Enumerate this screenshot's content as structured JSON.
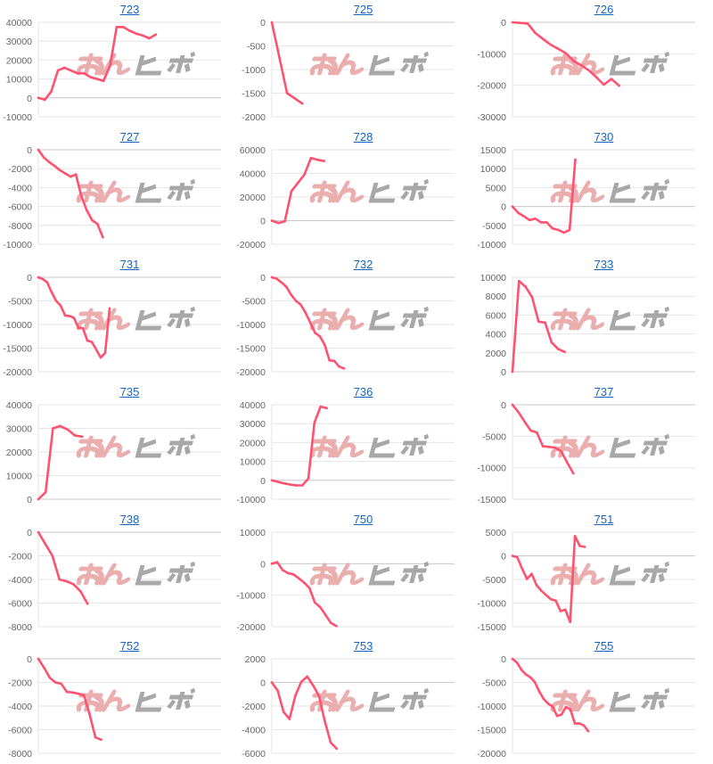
{
  "watermark": "みんレポ",
  "colors": {
    "line": "#ff5270",
    "grid": "#e6e6e6",
    "baseline": "#c8c8c8",
    "title_link": "#1565c0",
    "watermark_pink": "#e8a0a0",
    "watermark_gray": "#9a9a9a"
  },
  "chart_data": [
    {
      "type": "line",
      "title": "723",
      "y_ticks": [
        40000,
        30000,
        20000,
        10000,
        0,
        -10000
      ],
      "values": [
        0,
        -1000,
        3500,
        14500,
        16000,
        14500,
        13000,
        13000,
        11000,
        10000,
        9000,
        17000,
        37500,
        37500,
        35500,
        34000,
        33000,
        31500,
        33500
      ]
    },
    {
      "type": "line",
      "title": "725",
      "y_ticks": [
        0,
        -500,
        -1000,
        -1500,
        -2000
      ],
      "values": [
        0,
        -1500,
        -1720
      ]
    },
    {
      "type": "line",
      "title": "726",
      "y_ticks": [
        0,
        -10000,
        -20000,
        -30000
      ],
      "values": [
        0,
        -200,
        -400,
        -3400,
        -5300,
        -7100,
        -8400,
        -9800,
        -12200,
        -13600,
        -15200,
        -17400,
        -19800,
        -18000,
        -20100
      ]
    },
    {
      "type": "line",
      "title": "727",
      "y_ticks": [
        0,
        -2000,
        -4000,
        -6000,
        -8000,
        -10000
      ],
      "values": [
        0,
        -800,
        -1300,
        -1700,
        -2150,
        -2500,
        -2850,
        -2600,
        -4900,
        -6400,
        -7450,
        -7850,
        -9250
      ]
    },
    {
      "type": "line",
      "title": "728",
      "y_ticks": [
        60000,
        40000,
        20000,
        0,
        -20000
      ],
      "values": [
        0,
        -2000,
        -500,
        25000,
        32000,
        39000,
        53000,
        51500,
        50500
      ]
    },
    {
      "type": "line",
      "title": "730",
      "y_ticks": [
        15000,
        10000,
        5000,
        0,
        -5000,
        -10000
      ],
      "values": [
        0,
        -1700,
        -2600,
        -3600,
        -3200,
        -4200,
        -4200,
        -5800,
        -6200,
        -6900,
        -6200,
        12400
      ]
    },
    {
      "type": "line",
      "title": "731",
      "y_ticks": [
        0,
        -5000,
        -10000,
        -15000,
        -20000
      ],
      "values": [
        0,
        -400,
        -1100,
        -3200,
        -5000,
        -6000,
        -8100,
        -8200,
        -8600,
        -10700,
        -10800,
        -13400,
        -13700,
        -15300,
        -17000,
        -16000,
        -6600
      ]
    },
    {
      "type": "line",
      "title": "732",
      "y_ticks": [
        0,
        -5000,
        -10000,
        -15000,
        -20000
      ],
      "values": [
        0,
        -300,
        -1100,
        -2000,
        -3700,
        -5000,
        -5800,
        -7500,
        -9600,
        -11800,
        -12500,
        -14300,
        -17600,
        -17700,
        -18900,
        -19300
      ]
    },
    {
      "type": "line",
      "title": "733",
      "y_ticks": [
        10000,
        8000,
        6000,
        4000,
        2000,
        0
      ],
      "values": [
        0,
        9600,
        9000,
        7900,
        5300,
        5200,
        3100,
        2400,
        2100
      ]
    },
    {
      "type": "line",
      "title": "735",
      "y_ticks": [
        40000,
        30000,
        20000,
        10000,
        0
      ],
      "values": [
        0,
        3000,
        30000,
        31000,
        29500,
        27000,
        26500
      ]
    },
    {
      "type": "line",
      "title": "736",
      "y_ticks": [
        40000,
        30000,
        20000,
        10000,
        0,
        -10000
      ],
      "values": [
        0,
        -800,
        -1600,
        -2200,
        -2700,
        -2700,
        1000,
        30500,
        39000,
        38200
      ]
    },
    {
      "type": "line",
      "title": "737",
      "y_ticks": [
        0,
        -5000,
        -10000,
        -15000
      ],
      "values": [
        0,
        -1200,
        -2700,
        -4100,
        -4400,
        -6600,
        -6700,
        -6800,
        -7400,
        -9200,
        -10900
      ]
    },
    {
      "type": "line",
      "title": "738",
      "y_ticks": [
        0,
        -2000,
        -4000,
        -6000,
        -8000
      ],
      "values": [
        0,
        -1000,
        -2000,
        -4000,
        -4150,
        -4400,
        -5000,
        -6050
      ]
    },
    {
      "type": "line",
      "title": "750",
      "y_ticks": [
        10000,
        0,
        -10000,
        -20000
      ],
      "values": [
        0,
        500,
        -2000,
        -3000,
        -3400,
        -4600,
        -6000,
        -7700,
        -12300,
        -13800,
        -16300,
        -18800,
        -19800
      ]
    },
    {
      "type": "line",
      "title": "751",
      "y_ticks": [
        5000,
        0,
        -5000,
        -10000,
        -15000
      ],
      "values": [
        0,
        -300,
        -2700,
        -4900,
        -3800,
        -6200,
        -7400,
        -8300,
        -9200,
        -9500,
        -11700,
        -11400,
        -14000,
        4200,
        2100,
        1900
      ]
    },
    {
      "type": "line",
      "title": "752",
      "y_ticks": [
        0,
        -2000,
        -4000,
        -6000,
        -8000
      ],
      "values": [
        0,
        -750,
        -1600,
        -2000,
        -2100,
        -2800,
        -2850,
        -2950,
        -3100,
        -4750,
        -6650,
        -6850
      ]
    },
    {
      "type": "line",
      "title": "753",
      "y_ticks": [
        2000,
        0,
        -2000,
        -4000,
        -6000
      ],
      "values": [
        0,
        -700,
        -2500,
        -3100,
        -1100,
        50,
        500,
        -250,
        -1150,
        -3300,
        -5100,
        -5600
      ]
    },
    {
      "type": "line",
      "title": "755",
      "y_ticks": [
        0,
        -5000,
        -10000,
        -15000,
        -20000
      ],
      "values": [
        0,
        -800,
        -2300,
        -3300,
        -3900,
        -4900,
        -6900,
        -8500,
        -9500,
        -10100,
        -12100,
        -11800,
        -10200,
        -10700,
        -13700,
        -13700,
        -14100,
        -15300
      ]
    }
  ]
}
